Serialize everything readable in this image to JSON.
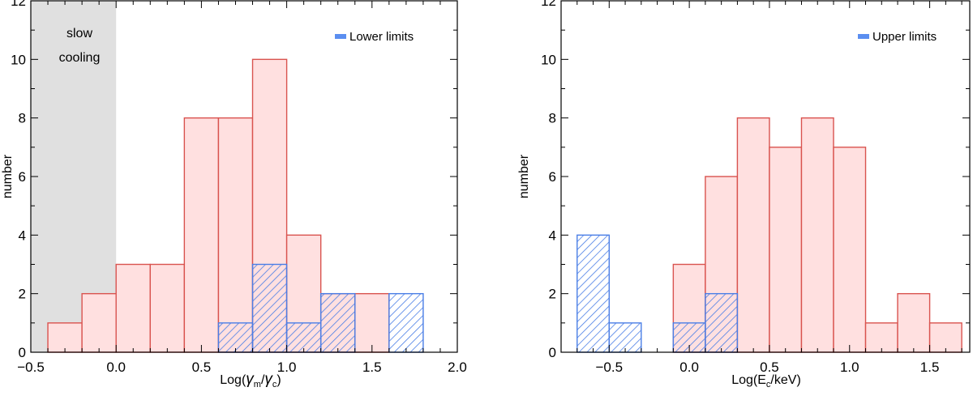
{
  "chart_data": [
    {
      "type": "histogram",
      "panel": "left",
      "xlabel_main": "Log(",
      "xlabel_sym1": "γ",
      "xlabel_sub1": "m",
      "xlabel_sep": "/",
      "xlabel_sym2": "γ",
      "xlabel_sub2": "c",
      "xlabel_close": ")",
      "ylabel": "number",
      "xlim": [
        -0.5,
        2.0
      ],
      "ylim": [
        0,
        12
      ],
      "xticks": [
        -0.5,
        0.0,
        0.5,
        1.0,
        1.5,
        2.0
      ],
      "xtick_labels": [
        "−0.5",
        "0.0",
        "0.5",
        "1.0",
        "1.5",
        "2.0"
      ],
      "yticks": [
        0,
        2,
        4,
        6,
        8,
        10,
        12
      ],
      "ytick_labels": [
        "0",
        "2",
        "4",
        "6",
        "8",
        "10",
        "12"
      ],
      "x_minor_step": 0.1,
      "y_minor_step": 1,
      "shaded_region": {
        "x0": -0.5,
        "x1": 0.0,
        "label_line1": "slow",
        "label_line2": "cooling"
      },
      "legend": {
        "label": "Lower limits",
        "position": "top-right"
      },
      "bins": [
        {
          "x0": -0.4,
          "x1": -0.2,
          "count": 1
        },
        {
          "x0": -0.2,
          "x1": 0.0,
          "count": 2
        },
        {
          "x0": 0.0,
          "x1": 0.2,
          "count": 3
        },
        {
          "x0": 0.2,
          "x1": 0.4,
          "count": 3
        },
        {
          "x0": 0.4,
          "x1": 0.6,
          "count": 8
        },
        {
          "x0": 0.6,
          "x1": 0.8,
          "count": 8
        },
        {
          "x0": 0.8,
          "x1": 1.0,
          "count": 10
        },
        {
          "x0": 1.0,
          "x1": 1.2,
          "count": 4
        },
        {
          "x0": 1.2,
          "x1": 1.4,
          "count": 2
        },
        {
          "x0": 1.4,
          "x1": 1.6,
          "count": 2
        }
      ],
      "limit_bins": [
        {
          "x0": 0.6,
          "x1": 0.8,
          "count": 1
        },
        {
          "x0": 0.8,
          "x1": 1.0,
          "count": 3
        },
        {
          "x0": 1.0,
          "x1": 1.2,
          "count": 1
        },
        {
          "x0": 1.2,
          "x1": 1.4,
          "count": 2
        },
        {
          "x0": 1.6,
          "x1": 1.8,
          "count": 2
        }
      ]
    },
    {
      "type": "histogram",
      "panel": "right",
      "xlabel_main": "Log(E",
      "xlabel_sub1": "c",
      "xlabel_close": "/keV)",
      "ylabel": "number",
      "xlim": [
        -0.8,
        1.75
      ],
      "ylim": [
        0,
        12
      ],
      "xticks": [
        -0.5,
        0.0,
        0.5,
        1.0,
        1.5
      ],
      "xtick_labels": [
        "−0.5",
        "0.0",
        "0.5",
        "1.0",
        "1.5"
      ],
      "yticks": [
        0,
        2,
        4,
        6,
        8,
        10,
        12
      ],
      "ytick_labels": [
        "0",
        "2",
        "4",
        "6",
        "8",
        "10",
        "12"
      ],
      "x_minor_step": 0.1,
      "y_minor_step": 1,
      "legend": {
        "label": "Upper limits",
        "position": "top-right"
      },
      "bins": [
        {
          "x0": -0.1,
          "x1": 0.1,
          "count": 3
        },
        {
          "x0": 0.1,
          "x1": 0.3,
          "count": 6
        },
        {
          "x0": 0.3,
          "x1": 0.5,
          "count": 8
        },
        {
          "x0": 0.5,
          "x1": 0.7,
          "count": 7
        },
        {
          "x0": 0.7,
          "x1": 0.9,
          "count": 8
        },
        {
          "x0": 0.9,
          "x1": 1.1,
          "count": 7
        },
        {
          "x0": 1.1,
          "x1": 1.3,
          "count": 1
        },
        {
          "x0": 1.3,
          "x1": 1.5,
          "count": 2
        },
        {
          "x0": 1.5,
          "x1": 1.7,
          "count": 1
        }
      ],
      "limit_bins": [
        {
          "x0": -0.7,
          "x1": -0.5,
          "count": 4
        },
        {
          "x0": -0.5,
          "x1": -0.3,
          "count": 1
        },
        {
          "x0": -0.1,
          "x1": 0.1,
          "count": 1
        },
        {
          "x0": 0.1,
          "x1": 0.3,
          "count": 2
        }
      ]
    }
  ],
  "colors": {
    "bar_fill": "#ffe0e0",
    "bar_edge": "#d9534f",
    "limit_edge": "#4a7ee6",
    "shade": "#e0e0e0",
    "legend_swatch": "#5b8ef0",
    "axis": "#000000"
  }
}
